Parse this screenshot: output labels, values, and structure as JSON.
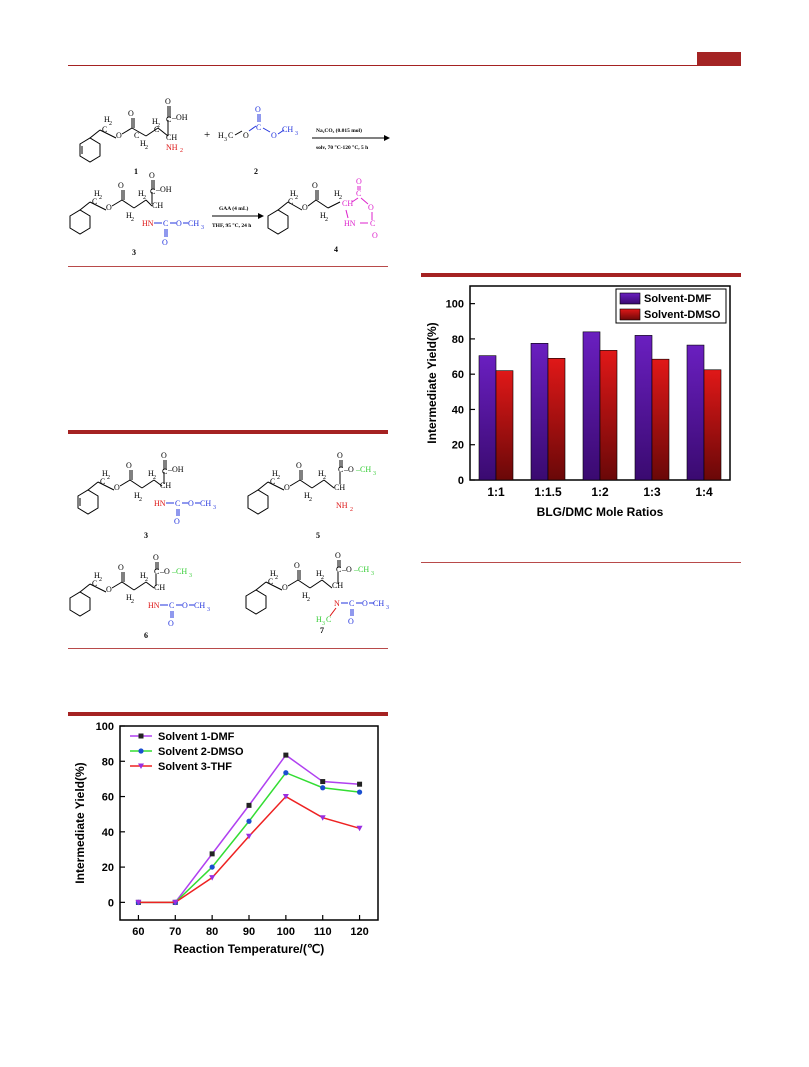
{
  "scheme1": {
    "labels": [
      "1",
      "2",
      "3",
      "4"
    ],
    "reagent_top": "Na₂CO₃ (0.015 mol)",
    "reagent_bottom": "solv, 70 °C-120 °C, 5 h",
    "step2_top": "GAA (4 mL)",
    "step2_bottom": "THF, 95 °C, 24 h",
    "plus": "+"
  },
  "scheme2": {
    "labels": [
      "3",
      "5",
      "6",
      "7"
    ]
  },
  "chart_bar": {
    "type": "bar",
    "categories": [
      "1:1",
      "1:1.5",
      "1:2",
      "1:3",
      "1:4"
    ],
    "series": [
      {
        "name": "Solvent-DMF",
        "values": [
          70.5,
          77.5,
          84,
          82,
          76.5
        ],
        "color": "#6a1fc0"
      },
      {
        "name": "Solvent-DMSO",
        "values": [
          62,
          69,
          73.5,
          68.5,
          62.5
        ],
        "color": "#e01818"
      }
    ],
    "xlabel": "BLG/DMC Mole Ratios",
    "ylabel": "Intermediate Yield(%)",
    "ylim": [
      0,
      110
    ],
    "yticks": [
      0,
      20,
      40,
      60,
      80,
      100
    ],
    "legend": "top-right"
  },
  "chart_line": {
    "type": "line",
    "x": [
      60,
      70,
      80,
      90,
      100,
      110,
      120
    ],
    "series": [
      {
        "name": "Solvent 1-DMF",
        "values": [
          0,
          0,
          27.5,
          55,
          83.5,
          68.5,
          67
        ],
        "color": "#b040f0",
        "marker": "square"
      },
      {
        "name": "Solvent 2-DMSO",
        "values": [
          0,
          0,
          20,
          46,
          73.5,
          65,
          62.5
        ],
        "color": "#33dd33",
        "marker": "circle"
      },
      {
        "name": "Solvent 3-THF",
        "values": [
          0,
          0,
          14,
          37.5,
          60,
          48,
          42
        ],
        "color": "#ee2222",
        "marker": "triangle-down"
      }
    ],
    "xlabel": "Reaction Temperature/(℃)",
    "ylabel": "Intermediate Yield(%)",
    "ylim": [
      -10,
      100
    ],
    "yticks": [
      0,
      20,
      40,
      60,
      80,
      100
    ],
    "xticks": [
      60,
      70,
      80,
      90,
      100,
      110,
      120
    ],
    "legend": "top-left"
  }
}
